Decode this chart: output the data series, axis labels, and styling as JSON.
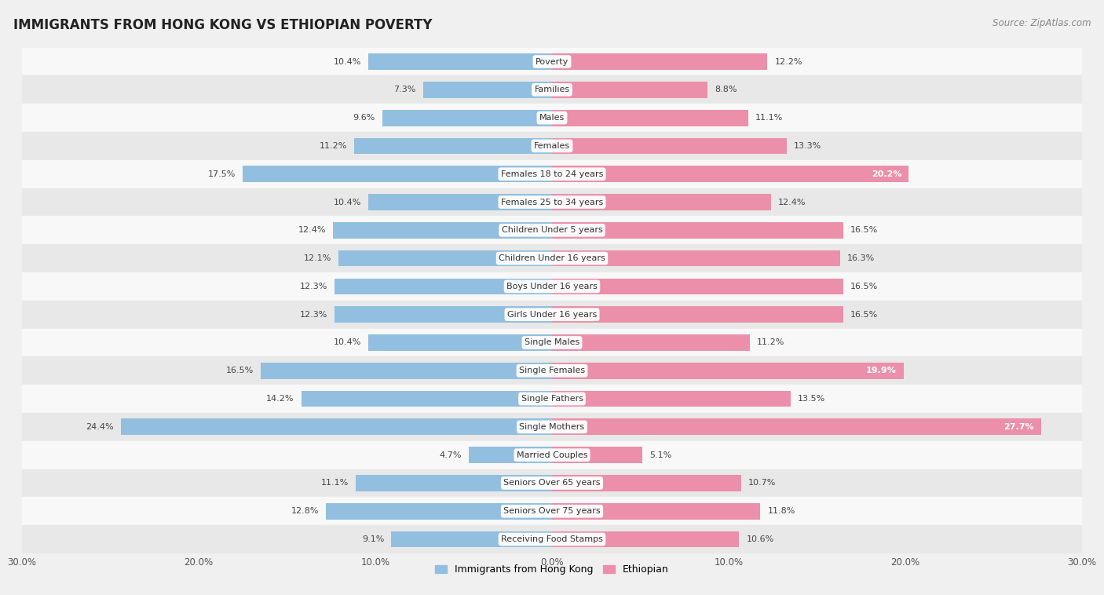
{
  "title": "IMMIGRANTS FROM HONG KONG VS ETHIOPIAN POVERTY",
  "source": "Source: ZipAtlas.com",
  "categories": [
    "Poverty",
    "Families",
    "Males",
    "Females",
    "Females 18 to 24 years",
    "Females 25 to 34 years",
    "Children Under 5 years",
    "Children Under 16 years",
    "Boys Under 16 years",
    "Girls Under 16 years",
    "Single Males",
    "Single Females",
    "Single Fathers",
    "Single Mothers",
    "Married Couples",
    "Seniors Over 65 years",
    "Seniors Over 75 years",
    "Receiving Food Stamps"
  ],
  "hk_values": [
    10.4,
    7.3,
    9.6,
    11.2,
    17.5,
    10.4,
    12.4,
    12.1,
    12.3,
    12.3,
    10.4,
    16.5,
    14.2,
    24.4,
    4.7,
    11.1,
    12.8,
    9.1
  ],
  "eth_values": [
    12.2,
    8.8,
    11.1,
    13.3,
    20.2,
    12.4,
    16.5,
    16.3,
    16.5,
    16.5,
    11.2,
    19.9,
    13.5,
    27.7,
    5.1,
    10.7,
    11.8,
    10.6
  ],
  "hk_color": "#92bfdf",
  "eth_color": "#eb8faa",
  "hk_label": "Immigrants from Hong Kong",
  "eth_label": "Ethiopian",
  "x_max": 30.0,
  "bg_color": "#f0f0f0",
  "row_even_color": "#e8e8e8",
  "row_odd_color": "#f8f8f8",
  "title_fontsize": 12,
  "source_fontsize": 8.5,
  "bar_height": 0.58,
  "label_inside_threshold": 19.0
}
